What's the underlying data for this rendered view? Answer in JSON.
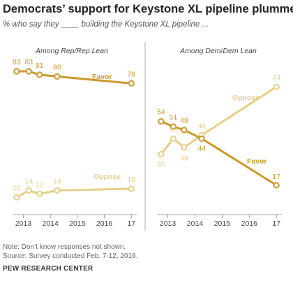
{
  "title": "Democrats’ support for Keystone XL pipeline plummets",
  "subtitle": "% who say they ____ building the Keystone XL pipeline ...",
  "colors": {
    "favor": "#c99a2e",
    "oppose": "#e6cf8a",
    "divider": "#999999",
    "axis": "#888888"
  },
  "chart_data": [
    {
      "type": "line",
      "panel_title": "Among Rep/Rep Lean",
      "x_ticks": [
        "2013",
        "2014",
        "2015",
        "2016",
        "17"
      ],
      "x_tick_values": [
        2013,
        2014,
        2015,
        2016,
        2017
      ],
      "xlim": [
        2012.6,
        2017.2
      ],
      "ylim": [
        0,
        100
      ],
      "series": [
        {
          "name": "Favor",
          "color": "#c99a2e",
          "x": [
            2012.75,
            2013.2,
            2013.6,
            2014.25,
            2017.0
          ],
          "values": [
            83,
            83,
            81,
            80,
            76
          ],
          "labels": [
            "83",
            "83",
            "81",
            "80",
            "76"
          ]
        },
        {
          "name": "Oppose",
          "color": "#e6cf8a",
          "x": [
            2012.75,
            2013.2,
            2013.6,
            2014.25,
            2017.0
          ],
          "values": [
            10,
            14,
            12,
            14,
            15
          ],
          "labels": [
            "10",
            "14",
            "12",
            "14",
            "15"
          ]
        }
      ]
    },
    {
      "type": "line",
      "panel_title": "Among Dem/Dem Lean",
      "x_ticks": [
        "2013",
        "2014",
        "2015",
        "2016",
        "17"
      ],
      "x_tick_values": [
        2013,
        2014,
        2015,
        2016,
        2017
      ],
      "xlim": [
        2012.6,
        2017.2
      ],
      "ylim": [
        0,
        100
      ],
      "series": [
        {
          "name": "Favor",
          "color": "#c99a2e",
          "x": [
            2012.75,
            2013.2,
            2013.6,
            2014.25,
            2017.0
          ],
          "values": [
            54,
            51,
            49,
            44,
            17
          ],
          "labels": [
            "54",
            "51",
            "49",
            "44",
            "17"
          ]
        },
        {
          "name": "Oppose",
          "color": "#e6cf8a",
          "x": [
            2012.75,
            2013.2,
            2013.6,
            2014.25,
            2017.0
          ],
          "values": [
            35,
            44,
            39,
            46,
            74
          ],
          "labels": [
            "35",
            "44",
            "39",
            "46",
            "74"
          ]
        }
      ]
    }
  ],
  "notes": [
    "Note: Don’t know responses not shown.",
    "Source: Survey conducted Feb. 7-12, 2016."
  ],
  "source_org": "PEW RESEARCH CENTER"
}
